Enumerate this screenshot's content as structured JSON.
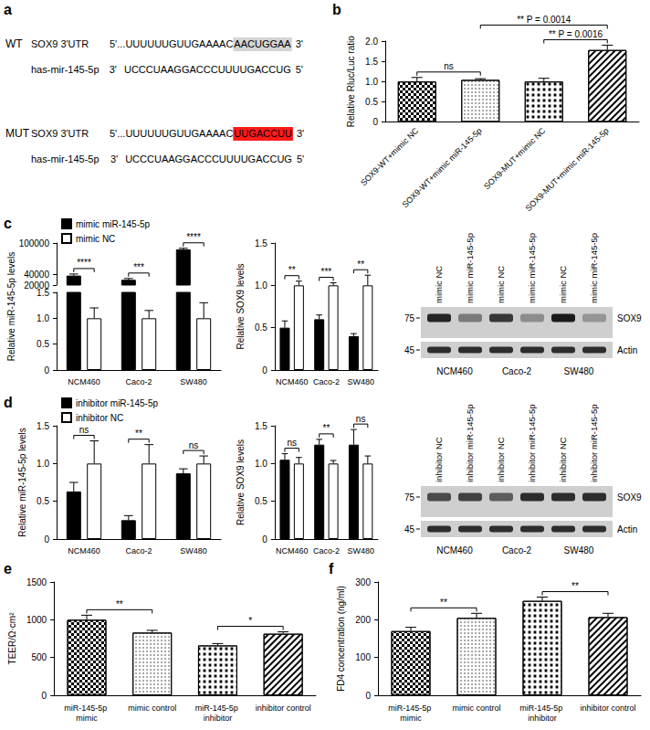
{
  "panel_labels": [
    "a",
    "b",
    "c",
    "d",
    "e",
    "f"
  ],
  "sequence_panel": {
    "rows": [
      {
        "label": "WT",
        "target": {
          "name": "SOX9 3'UTR",
          "five_prime": "5'...UUUUUUGUUGAAAAC",
          "site": "AACUGGAA",
          "three_prime": "3'",
          "site_color": "#d4d4d4"
        },
        "mirna": {
          "name": "has-mir-145-5p",
          "start": "3'",
          "sequence": "UCCCUAAGGACCCUUUUGACCUG",
          "end": "5'"
        }
      },
      {
        "label": "MUT",
        "target": {
          "name": "SOX9 3'UTR",
          "five_prime": "5'...UUUUUUGUUGAAAAC",
          "site": "UUGACCUU",
          "three_prime": "3'",
          "site_color": "#ff1a1a"
        },
        "mirna": {
          "name": "has-mir-145-5p",
          "start": "3'",
          "sequence": "UCCCUAAGGACCCUUUUGACCUG",
          "end": "5'"
        }
      }
    ]
  },
  "blots": [
    {
      "groups": [
        "NCM460",
        "Caco-2",
        "SW480"
      ],
      "lanes": [
        "mimic NC",
        "mimic miR-145-5p"
      ],
      "markers": [
        75,
        45
      ],
      "bands": [
        "SOX9",
        "Actin"
      ]
    },
    {
      "groups": [
        "NCM460",
        "Caco-2",
        "SW480"
      ],
      "lanes": [
        "inhibitor NC",
        "inhibitor miR-145-5p"
      ],
      "markers": [
        75,
        45
      ],
      "bands": [
        "SOX9",
        "Actin"
      ]
    }
  ],
  "chart_data": [
    {
      "type": "bar",
      "ylabel": "Relative Rluc/Luc ratio",
      "categories": [
        "SOX9-WT+mimic NC",
        "SOX9-WT+mimic miR-145-5p",
        "SOX9-MUT+mimic NC",
        "SOX9-MUT+mimic miR-145-5p"
      ],
      "values": [
        1.0,
        1.04,
        1.0,
        1.78
      ],
      "errors": [
        0.1,
        0.03,
        0.08,
        0.12
      ],
      "color": "#000000",
      "ylim": [
        0,
        2
      ],
      "yticks": [
        0,
        0.5,
        {
          "value": 1,
          "label": "1.0"
        },
        1.5,
        {
          "value": 2,
          "label": "2.0"
        }
      ],
      "annotations": [
        {
          "text": "ns",
          "between": [
            0,
            1
          ]
        },
        {
          "text": "** P = 0.0014",
          "between": [
            1,
            3
          ]
        },
        {
          "text": "** P = 0.0016",
          "between": [
            2,
            3
          ]
        }
      ],
      "grid": false
    },
    {
      "type": "bar",
      "ylabel": "Relative miR-145-5p levels",
      "categories": [
        "NCM460",
        "Caco-2",
        "SW480"
      ],
      "series": [
        {
          "name": "mimic miR-145-5p",
          "color": "#000000",
          "values": [
            38000,
            30000,
            88000
          ],
          "errors": [
            3000,
            2500,
            2000
          ]
        },
        {
          "name": "mimic NC",
          "color": "#ffffff",
          "values": [
            1,
            1,
            1
          ],
          "errors": [
            0.2,
            0.15,
            0.3
          ]
        }
      ],
      "y_segments": [
        {
          "ylim": [
            0,
            1.5
          ],
          "yticks": [
            0,
            0.5,
            {
              "value": 1,
              "label": "1.0"
            },
            1.5
          ]
        },
        {
          "ylim": [
            20000,
            100000
          ],
          "yticks": [
            20000,
            40000,
            100000
          ]
        }
      ],
      "significance": [
        "****",
        "***",
        "****"
      ],
      "legend": "top-left",
      "grid": false
    },
    {
      "type": "bar",
      "ylabel": "Relative SOX9 levels",
      "categories": [
        "NCM460",
        "Caco-2",
        "SW480"
      ],
      "series": [
        {
          "name": "mimic miR-145-5p",
          "color": "#000000",
          "values": [
            0.5,
            0.6,
            0.4
          ],
          "errors": [
            0.08,
            0.05,
            0.03
          ]
        },
        {
          "name": "mimic NC",
          "color": "#ffffff",
          "values": [
            1.0,
            1.0,
            1.0
          ],
          "errors": [
            0.05,
            0.03,
            0.12
          ]
        }
      ],
      "ylim": [
        0,
        1.5
      ],
      "yticks": [
        0,
        0.5,
        {
          "value": 1,
          "label": "1.0"
        },
        1.5
      ],
      "significance": [
        "**",
        "***",
        "**"
      ],
      "grid": false
    },
    {
      "type": "bar",
      "ylabel": "Relative miR-145-5p levels",
      "categories": [
        "NCM460",
        "Caco-2",
        "SW480"
      ],
      "series": [
        {
          "name": "inhibitor miR-145-5p",
          "color": "#000000",
          "values": [
            0.63,
            0.25,
            0.87
          ],
          "errors": [
            0.12,
            0.06,
            0.06
          ]
        },
        {
          "name": "inhibitor NC",
          "color": "#ffffff",
          "values": [
            1.0,
            1.0,
            1.0
          ],
          "errors": [
            0.3,
            0.25,
            0.1
          ]
        }
      ],
      "ylim": [
        0,
        1.5
      ],
      "yticks": [
        0,
        0.5,
        {
          "value": 1,
          "label": "1.0"
        },
        1.5
      ],
      "significance": [
        "ns",
        "**",
        "ns"
      ],
      "legend": "top-left",
      "grid": false
    },
    {
      "type": "bar",
      "ylabel": "Relative SOX9 levels",
      "categories": [
        "NCM460",
        "Caco-2",
        "SW480"
      ],
      "series": [
        {
          "name": "inhibitor miR-145-5p",
          "color": "#000000",
          "values": [
            1.05,
            1.25,
            1.25
          ],
          "errors": [
            0.08,
            0.07,
            0.2
          ]
        },
        {
          "name": "inhibitor NC",
          "color": "#ffffff",
          "values": [
            1.0,
            1.0,
            1.0
          ],
          "errors": [
            0.08,
            0.04,
            0.1
          ]
        }
      ],
      "ylim": [
        0,
        1.5
      ],
      "yticks": [
        0,
        0.5,
        {
          "value": 1,
          "label": "1.0"
        },
        1.5
      ],
      "significance": [
        "ns",
        "**",
        "ns"
      ],
      "grid": false
    },
    {
      "type": "bar",
      "ylabel": "TEER/Ω·cm²",
      "categories": [
        "miR-145-5p mimic",
        "mimic control",
        "miR-145-5p inhibitor",
        "inhibitor control"
      ],
      "values": [
        1000,
        830,
        660,
        815
      ],
      "errors": [
        60,
        30,
        25,
        25
      ],
      "color": "#000000",
      "ylim": [
        0,
        1500
      ],
      "yticks": [
        0,
        500,
        1000,
        1500
      ],
      "annotations": [
        {
          "text": "**",
          "between": [
            0,
            1
          ]
        },
        {
          "text": "*",
          "between": [
            2,
            3
          ]
        }
      ],
      "grid": false
    },
    {
      "type": "bar",
      "ylabel": "FD4 concentration (ng/ml)",
      "categories": [
        "miR-145-5p mimic",
        "mimic control",
        "miR-145-5p inhibitor",
        "inhibitor control"
      ],
      "values": [
        170,
        205,
        250,
        207
      ],
      "errors": [
        10,
        12,
        10,
        10
      ],
      "color": "#000000",
      "ylim": [
        0,
        300
      ],
      "yticks": [
        0,
        100,
        200,
        300
      ],
      "annotations": [
        {
          "text": "**",
          "between": [
            0,
            1
          ]
        },
        {
          "text": "**",
          "between": [
            2,
            3
          ]
        }
      ],
      "grid": false
    }
  ]
}
